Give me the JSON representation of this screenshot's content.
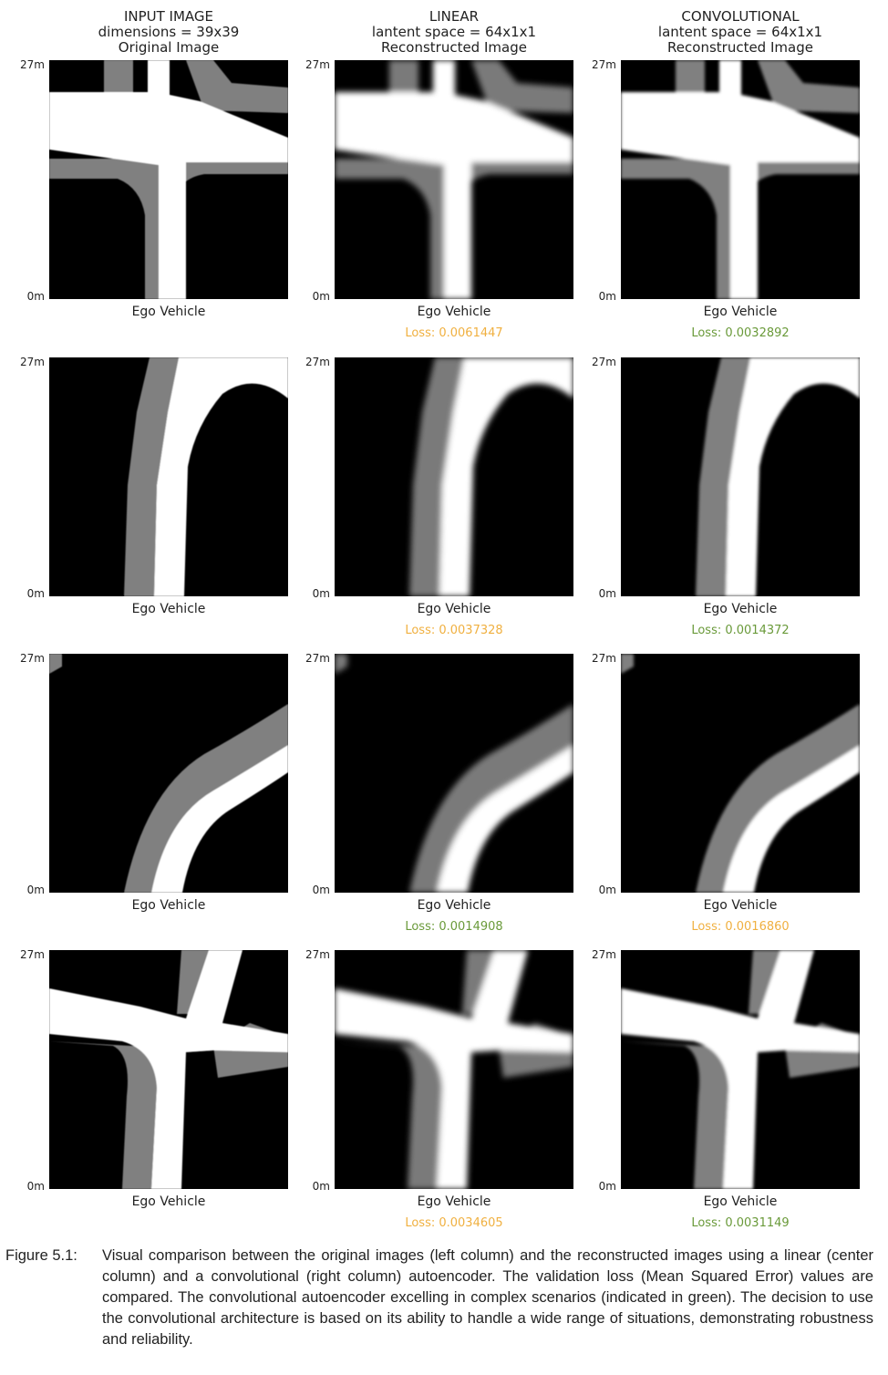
{
  "columns": [
    {
      "lines": [
        "INPUT IMAGE",
        "dimensions = 39x39",
        "Original Image"
      ]
    },
    {
      "lines": [
        "LINEAR",
        "lantent space = 64x1x1",
        "Reconstructed Image"
      ]
    },
    {
      "lines": [
        "CONVOLUTIONAL",
        "lantent space = 64x1x1",
        "Reconstructed Image"
      ]
    }
  ],
  "axis": {
    "y_top": "27m",
    "y_bottom": "0m",
    "x_label": "Ego Vehicle"
  },
  "colors": {
    "better": "#6a9a3a",
    "worse": "#f0b040",
    "road": "#ffffff",
    "lane": "#808080",
    "background": "#000000"
  },
  "rows": [
    {
      "losses": [
        {
          "text": "",
          "status": ""
        },
        {
          "text": "Loss: 0.0061447",
          "status": "worse"
        },
        {
          "text": "Loss: 0.0032892",
          "status": "better"
        }
      ]
    },
    {
      "losses": [
        {
          "text": "",
          "status": ""
        },
        {
          "text": "Loss: 0.0037328",
          "status": "worse"
        },
        {
          "text": "Loss: 0.0014372",
          "status": "better"
        }
      ]
    },
    {
      "losses": [
        {
          "text": "",
          "status": ""
        },
        {
          "text": "Loss: 0.0014908",
          "status": "better"
        },
        {
          "text": "Loss: 0.0016860",
          "status": "worse"
        }
      ]
    },
    {
      "losses": [
        {
          "text": "",
          "status": ""
        },
        {
          "text": "Loss: 0.0034605",
          "status": "worse"
        },
        {
          "text": "Loss: 0.0031149",
          "status": "better"
        }
      ]
    }
  ],
  "caption": {
    "label": "Figure 5.1:",
    "text": "Visual comparison between the original images (left column) and the reconstructed images using a linear (center column) and a convolutional (right column) autoencoder. The validation loss (Mean Squared Error) values are compared. The convolutional autoencoder excelling in complex scenarios (indicated in green). The decision to use the convolutional architecture is based on its ability to handle a wide range of situations, demonstrating robustness and reliability."
  }
}
